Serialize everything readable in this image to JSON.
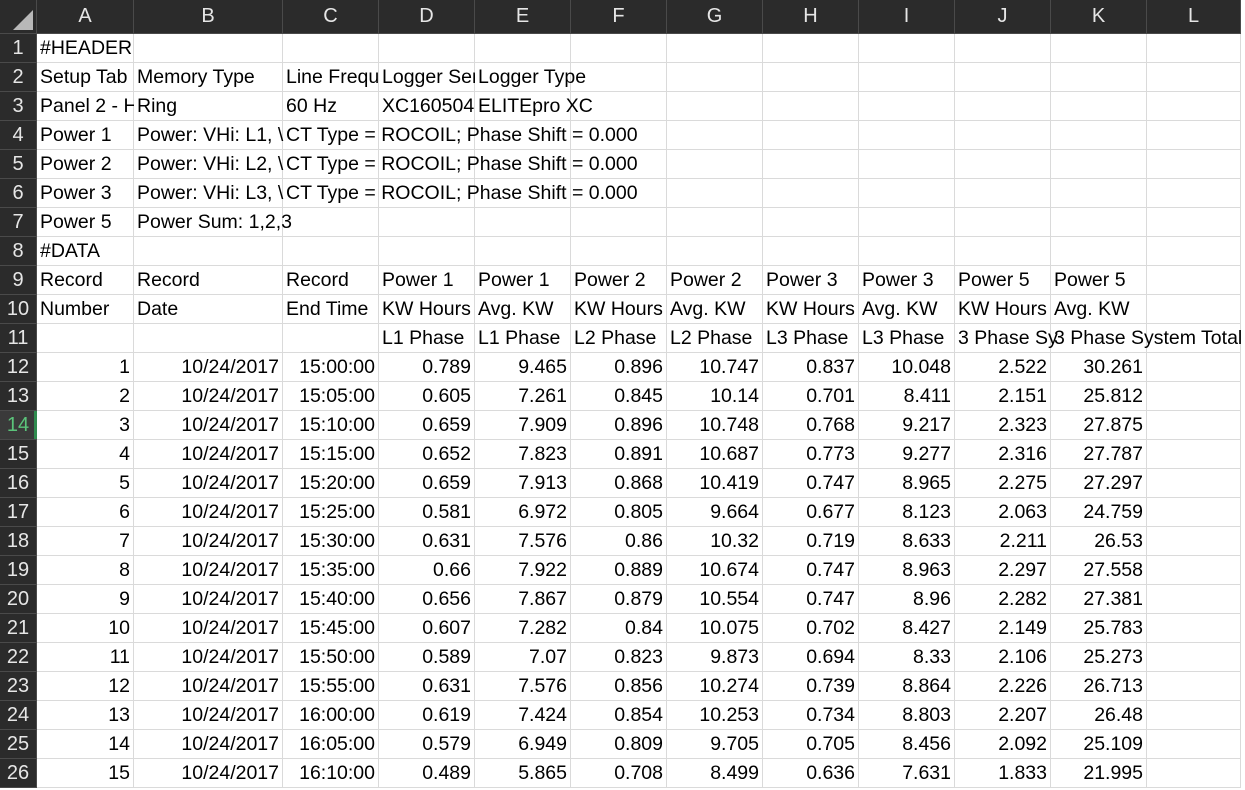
{
  "columns": [
    "A",
    "B",
    "C",
    "D",
    "E",
    "F",
    "G",
    "H",
    "I",
    "J",
    "K",
    "L"
  ],
  "rows": [
    "1",
    "2",
    "3",
    "4",
    "5",
    "6",
    "7",
    "8",
    "9",
    "10",
    "11",
    "12",
    "13",
    "14",
    "15",
    "16",
    "17",
    "18",
    "19",
    "20",
    "21",
    "22",
    "23",
    "24",
    "25",
    "26"
  ],
  "selected_row": "14",
  "header": {
    "r1": {
      "A": "#HEADER"
    },
    "r2": {
      "A": "Setup Tab",
      "B": "Memory Type",
      "C": "Line Frequ",
      "D": "Logger Ser",
      "E": "Logger Type"
    },
    "r3": {
      "A": "Panel 2 - H",
      "B": "Ring",
      "C": "60 Hz",
      "D": "XC160504(",
      "E": "ELITEpro XC"
    },
    "r4": {
      "A": "Power 1",
      "B": "Power: VHi: L1, \\",
      "C": "CT Type = ROCOIL; Phase Shift = 0.000"
    },
    "r5": {
      "A": "Power 2",
      "B": "Power: VHi: L2, \\",
      "C": "CT Type = ROCOIL; Phase Shift = 0.000"
    },
    "r6": {
      "A": "Power 3",
      "B": "Power: VHi: L3, \\",
      "C": "CT Type = ROCOIL; Phase Shift = 0.000"
    },
    "r7": {
      "A": "Power 5",
      "B": "Power Sum: 1,2,3"
    },
    "r8": {
      "A": "#DATA"
    },
    "r9": {
      "A": "Record",
      "B": "Record",
      "C": "Record",
      "D": "Power 1",
      "E": "Power 1",
      "F": "Power 2",
      "G": "Power 2",
      "H": "Power 3",
      "I": "Power 3",
      "J": "Power 5",
      "K": "Power 5"
    },
    "r10": {
      "A": "Number",
      "B": "Date",
      "C": "End Time",
      "D": "KW Hours",
      "E": "Avg. KW",
      "F": "KW Hours",
      "G": "Avg. KW",
      "H": "KW Hours",
      "I": "Avg. KW",
      "J": "KW Hours",
      "K": "Avg. KW"
    },
    "r11": {
      "D": "L1 Phase",
      "E": "L1 Phase",
      "F": "L2 Phase",
      "G": "L2 Phase",
      "H": "L3 Phase",
      "I": "L3 Phase",
      "J": "3 Phase Sy",
      "K": "3 Phase System Total"
    }
  },
  "data_rows": [
    [
      "1",
      "10/24/2017",
      "15:00:00",
      "0.789",
      "9.465",
      "0.896",
      "10.747",
      "0.837",
      "10.048",
      "2.522",
      "30.261"
    ],
    [
      "2",
      "10/24/2017",
      "15:05:00",
      "0.605",
      "7.261",
      "0.845",
      "10.14",
      "0.701",
      "8.411",
      "2.151",
      "25.812"
    ],
    [
      "3",
      "10/24/2017",
      "15:10:00",
      "0.659",
      "7.909",
      "0.896",
      "10.748",
      "0.768",
      "9.217",
      "2.323",
      "27.875"
    ],
    [
      "4",
      "10/24/2017",
      "15:15:00",
      "0.652",
      "7.823",
      "0.891",
      "10.687",
      "0.773",
      "9.277",
      "2.316",
      "27.787"
    ],
    [
      "5",
      "10/24/2017",
      "15:20:00",
      "0.659",
      "7.913",
      "0.868",
      "10.419",
      "0.747",
      "8.965",
      "2.275",
      "27.297"
    ],
    [
      "6",
      "10/24/2017",
      "15:25:00",
      "0.581",
      "6.972",
      "0.805",
      "9.664",
      "0.677",
      "8.123",
      "2.063",
      "24.759"
    ],
    [
      "7",
      "10/24/2017",
      "15:30:00",
      "0.631",
      "7.576",
      "0.86",
      "10.32",
      "0.719",
      "8.633",
      "2.211",
      "26.53"
    ],
    [
      "8",
      "10/24/2017",
      "15:35:00",
      "0.66",
      "7.922",
      "0.889",
      "10.674",
      "0.747",
      "8.963",
      "2.297",
      "27.558"
    ],
    [
      "9",
      "10/24/2017",
      "15:40:00",
      "0.656",
      "7.867",
      "0.879",
      "10.554",
      "0.747",
      "8.96",
      "2.282",
      "27.381"
    ],
    [
      "10",
      "10/24/2017",
      "15:45:00",
      "0.607",
      "7.282",
      "0.84",
      "10.075",
      "0.702",
      "8.427",
      "2.149",
      "25.783"
    ],
    [
      "11",
      "10/24/2017",
      "15:50:00",
      "0.589",
      "7.07",
      "0.823",
      "9.873",
      "0.694",
      "8.33",
      "2.106",
      "25.273"
    ],
    [
      "12",
      "10/24/2017",
      "15:55:00",
      "0.631",
      "7.576",
      "0.856",
      "10.274",
      "0.739",
      "8.864",
      "2.226",
      "26.713"
    ],
    [
      "13",
      "10/24/2017",
      "16:00:00",
      "0.619",
      "7.424",
      "0.854",
      "10.253",
      "0.734",
      "8.803",
      "2.207",
      "26.48"
    ],
    [
      "14",
      "10/24/2017",
      "16:05:00",
      "0.579",
      "6.949",
      "0.809",
      "9.705",
      "0.705",
      "8.456",
      "2.092",
      "25.109"
    ],
    [
      "15",
      "10/24/2017",
      "16:10:00",
      "0.489",
      "5.865",
      "0.708",
      "8.499",
      "0.636",
      "7.631",
      "1.833",
      "21.995"
    ]
  ],
  "colors": {
    "header_bg": "#2b2b2b",
    "header_text": "#e6e6e6",
    "gridline": "#dadada",
    "selected_row_text": "#5bc37a"
  }
}
